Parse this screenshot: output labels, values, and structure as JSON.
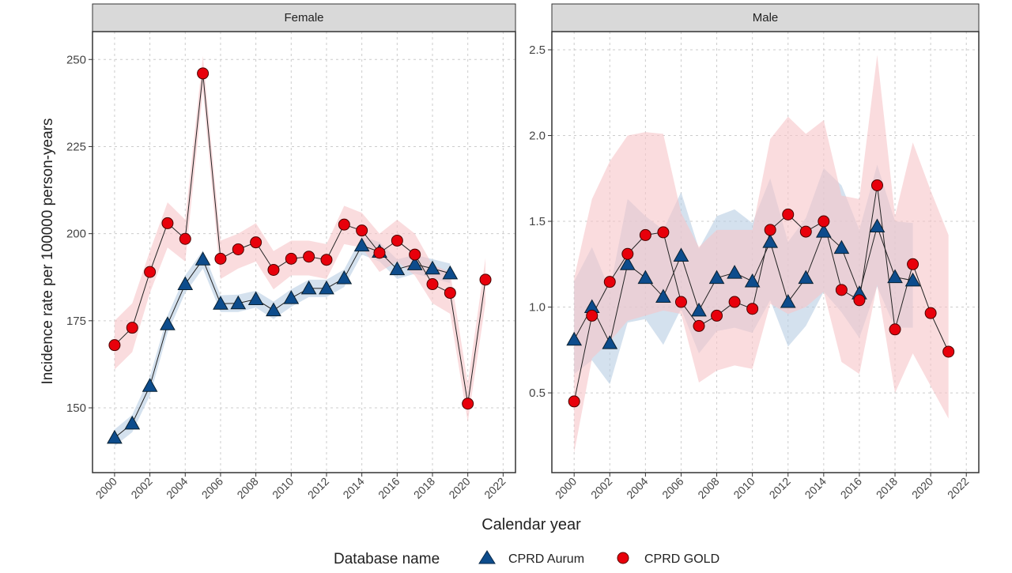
{
  "chart_data": {
    "type": "line",
    "xlabel": "Calendar year",
    "ylabel": "Incidence rate per 100000 person-years",
    "legend": {
      "title": "Database name",
      "placement": "bottom"
    },
    "grid": true,
    "series_styles": [
      {
        "name": "CPRD Aurum",
        "marker": "triangle",
        "color": "#0d4c8c",
        "band_color": "#b7cde3"
      },
      {
        "name": "CPRD GOLD",
        "marker": "circle",
        "color": "#e8000b",
        "band_color": "#f7c4c8"
      }
    ],
    "x_ticks": [
      2000,
      2002,
      2004,
      2006,
      2008,
      2010,
      2012,
      2014,
      2016,
      2018,
      2020,
      2022
    ],
    "xlim": [
      1998.75,
      2022.7
    ],
    "panels": [
      {
        "strip": "Female",
        "ylim": [
          131.4,
          258
        ],
        "y_ticks": [
          150,
          175,
          200,
          225,
          250
        ],
        "series": [
          {
            "name": "CPRD Aurum",
            "x": [
              2000,
              2001,
              2002,
              2003,
              2004,
              2005,
              2006,
              2007,
              2008,
              2009,
              2010,
              2011,
              2012,
              2013,
              2014,
              2015,
              2016,
              2017,
              2018,
              2019
            ],
            "y": [
              141.4,
              145.5,
              156.3,
              174,
              185.5,
              192.6,
              179.9,
              180,
              181.2,
              178,
              181.5,
              184.3,
              184.3,
              187.2,
              196.6,
              194.8,
              189.8,
              191.2,
              190,
              188.6
            ],
            "lower": [
              139,
              143,
              153.5,
              171.5,
              183,
              190,
              177.5,
              177.5,
              178.8,
              175.5,
              179,
              181.8,
              181.8,
              184.7,
              194,
              192,
              187,
              188.5,
              187.3,
              185.8
            ],
            "upper": [
              143.8,
              148,
              159,
              176.5,
              188,
              195.2,
              182.3,
              182.5,
              183.6,
              180.5,
              184,
              186.8,
              186.8,
              189.7,
              199.2,
              197.6,
              192.6,
              193.9,
              192.7,
              191.4
            ]
          },
          {
            "name": "CPRD GOLD",
            "x": [
              2000,
              2001,
              2002,
              2003,
              2004,
              2005,
              2006,
              2007,
              2008,
              2009,
              2010,
              2011,
              2012,
              2013,
              2014,
              2015,
              2016,
              2017,
              2018,
              2019,
              2020,
              2021
            ],
            "y": [
              168,
              173,
              189,
              203,
              198.5,
              246,
              192.8,
              195.5,
              197.5,
              189.6,
              192.8,
              193.4,
              192.5,
              202.6,
              200.9,
              194.5,
              198,
              194,
              185.5,
              183,
              151.2,
              186.8
            ],
            "lower": [
              161,
              166,
              183,
              196,
              192,
              241,
              187,
              190,
              192,
              184,
              188,
              188,
              187,
              197,
              196,
              189,
              192,
              188,
              180,
              177,
              146,
              180
            ],
            "upper": [
              175,
              180,
              195,
              209,
              204,
              251,
              198,
              200,
              203,
              195,
              198,
              198,
              197,
              208,
              206,
              200,
              204,
              200,
              191,
              189,
              157,
              193
            ]
          }
        ]
      },
      {
        "strip": "Male",
        "ylim": [
          0.035,
          2.606
        ],
        "y_ticks": [
          0.5,
          1.0,
          1.5,
          2.0,
          2.5
        ],
        "y_tick_labels": [
          "0.5",
          "1.0",
          "1.5",
          "2.0",
          "2.5"
        ],
        "series": [
          {
            "name": "CPRD Aurum",
            "x": [
              2000,
              2001,
              2002,
              2003,
              2004,
              2005,
              2006,
              2007,
              2008,
              2009,
              2010,
              2011,
              2012,
              2013,
              2014,
              2015,
              2016,
              2017,
              2018,
              2019
            ],
            "y": [
              0.81,
              1.0,
              0.79,
              1.25,
              1.17,
              1.06,
              1.3,
              0.98,
              1.17,
              1.2,
              1.15,
              1.38,
              1.03,
              1.17,
              1.44,
              1.345,
              1.08,
              1.47,
              1.175,
              1.155
            ],
            "lower": [
              0.61,
              0.69,
              0.55,
              0.91,
              0.93,
              0.78,
              0.99,
              0.73,
              0.86,
              0.88,
              0.85,
              1.04,
              0.77,
              0.89,
              1.09,
              0.97,
              0.82,
              1.12,
              0.88,
              0.88
            ],
            "upper": [
              1.15,
              1.35,
              1.1,
              1.63,
              1.53,
              1.45,
              1.67,
              1.34,
              1.53,
              1.57,
              1.49,
              1.75,
              1.38,
              1.52,
              1.81,
              1.71,
              1.45,
              1.83,
              1.5,
              1.49
            ]
          },
          {
            "name": "CPRD GOLD",
            "x": [
              2000,
              2001,
              2002,
              2003,
              2004,
              2005,
              2006,
              2007,
              2008,
              2009,
              2010,
              2011,
              2012,
              2013,
              2014,
              2015,
              2016,
              2017,
              2018,
              2019,
              2020,
              2021
            ],
            "y": [
              0.45,
              0.95,
              1.147,
              1.31,
              1.42,
              1.436,
              1.03,
              0.89,
              0.95,
              1.03,
              0.99,
              1.45,
              1.54,
              1.44,
              1.5,
              1.1,
              1.04,
              1.71,
              0.87,
              1.25,
              0.965,
              0.74
            ],
            "lower": [
              0.15,
              0.7,
              0.8,
              0.92,
              0.95,
              0.98,
              0.96,
              0.56,
              0.63,
              0.66,
              0.64,
              1.02,
              0.96,
              1.0,
              1.09,
              0.68,
              0.61,
              1.13,
              0.5,
              0.73,
              0.54,
              0.35
            ],
            "upper": [
              1.17,
              1.63,
              1.85,
              2.0,
              2.02,
              2.01,
              1.55,
              1.35,
              1.45,
              1.45,
              1.45,
              1.98,
              2.11,
              2.01,
              2.09,
              1.65,
              1.63,
              2.47,
              1.53,
              1.96,
              1.68,
              1.42
            ]
          }
        ]
      }
    ]
  }
}
